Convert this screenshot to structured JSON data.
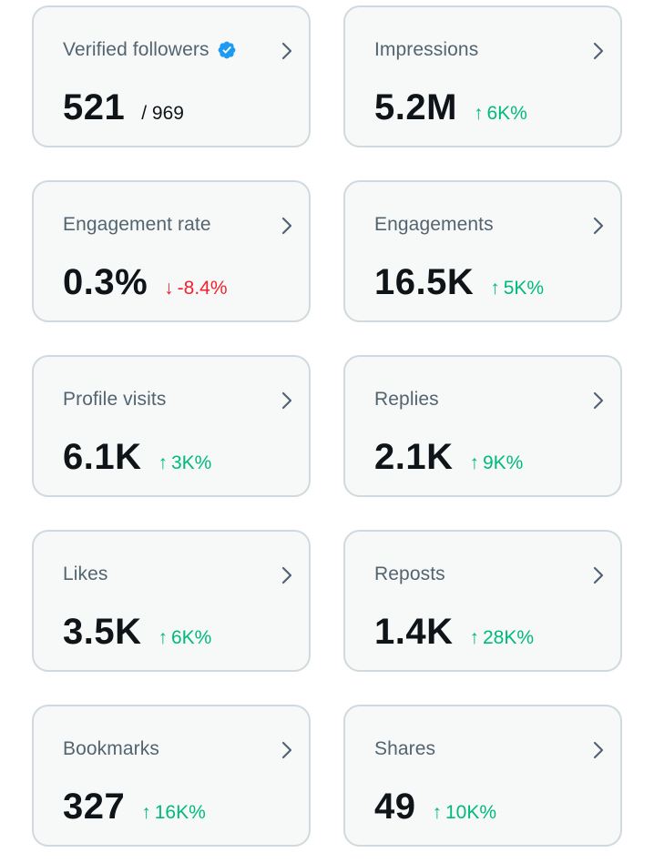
{
  "colors": {
    "up": "#00ba7c",
    "down": "#f4212e",
    "verified": "#1d9bf0"
  },
  "cards": [
    {
      "label": "Verified followers",
      "value": "521",
      "secondary": "/ 969",
      "icon": "verified-badge-icon"
    },
    {
      "label": "Impressions",
      "value": "5.2M",
      "arrow": "↑",
      "delta": "6K%"
    },
    {
      "label": "Engagement rate",
      "value": "0.3%",
      "arrow": "↓",
      "delta": "-8.4%"
    },
    {
      "label": "Engagements",
      "value": "16.5K",
      "arrow": "↑",
      "delta": "5K%"
    },
    {
      "label": "Profile visits",
      "value": "6.1K",
      "arrow": "↑",
      "delta": "3K%"
    },
    {
      "label": "Replies",
      "value": "2.1K",
      "arrow": "↑",
      "delta": "9K%"
    },
    {
      "label": "Likes",
      "value": "3.5K",
      "arrow": "↑",
      "delta": "6K%"
    },
    {
      "label": "Reposts",
      "value": "1.4K",
      "arrow": "↑",
      "delta": "28K%"
    },
    {
      "label": "Bookmarks",
      "value": "327",
      "arrow": "↑",
      "delta": "16K%"
    },
    {
      "label": "Shares",
      "value": "49",
      "arrow": "↑",
      "delta": "10K%"
    }
  ]
}
